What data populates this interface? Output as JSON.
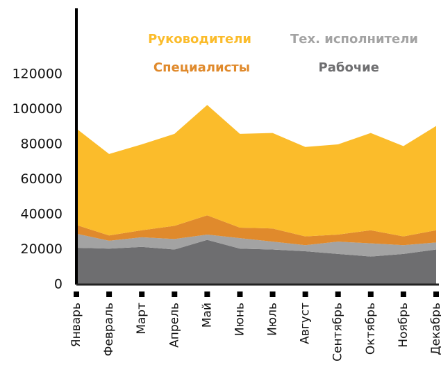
{
  "chart_data": {
    "type": "stacked_area",
    "categories": [
      "Январь",
      "Февраль",
      "Март",
      "Апрель",
      "Май",
      "Июнь",
      "Июль",
      "Август",
      "Сентябрь",
      "Октябрь",
      "Ноябрь",
      "Декабрь"
    ],
    "series": [
      {
        "name": "Рабочие",
        "color": "#6e6e70",
        "values": [
          21000,
          20500,
          21500,
          20000,
          25500,
          20500,
          20000,
          19000,
          17500,
          16000,
          17500,
          20000
        ]
      },
      {
        "name": "Тех. исполнители",
        "color": "#a3a3a3",
        "values": [
          8000,
          4500,
          5500,
          6000,
          3000,
          6000,
          4500,
          3500,
          7000,
          7500,
          5000,
          4000
        ]
      },
      {
        "name": "Специалисты",
        "color": "#e08a2c",
        "values": [
          5000,
          3000,
          4000,
          7500,
          11000,
          6000,
          7500,
          5000,
          4000,
          7500,
          5000,
          7000
        ]
      },
      {
        "name": "Руководители",
        "color": "#fbbc2b",
        "values": [
          55000,
          46500,
          49000,
          52500,
          63000,
          53500,
          54500,
          51000,
          51500,
          55500,
          51500,
          59500
        ]
      }
    ],
    "ylim": [
      0,
      160000
    ],
    "yticks": [
      0,
      20000,
      40000,
      60000,
      80000,
      100000,
      120000
    ]
  }
}
